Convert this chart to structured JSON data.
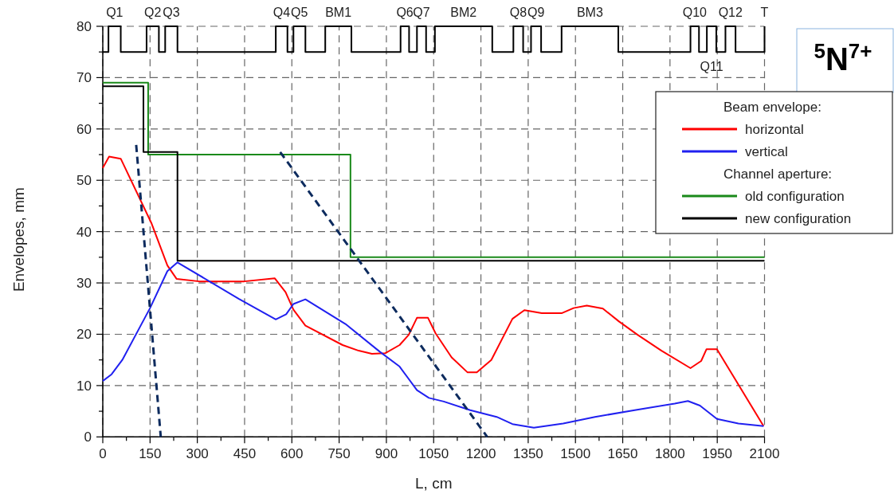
{
  "chart_data": {
    "type": "line",
    "xlabel": "L, cm",
    "ylabel": "Envelopes, mm",
    "legend_title": "Beam envelope:",
    "legend": "top right",
    "grid": true,
    "xlim": [
      0,
      2100
    ],
    "ylim": [
      0,
      80
    ],
    "xticks": [
      0,
      {
        "value": 75,
        "label": null
      },
      150,
      {
        "value": 225,
        "label": null
      },
      300,
      {
        "value": 375,
        "label": null
      },
      450,
      {
        "value": 525,
        "label": null
      },
      600,
      {
        "value": 675,
        "label": null
      },
      750,
      {
        "value": 825,
        "label": null
      },
      900,
      {
        "value": 975,
        "label": null
      },
      1050,
      {
        "value": 1125,
        "label": null
      },
      1200,
      {
        "value": 1275,
        "label": null
      },
      1350,
      {
        "value": 1425,
        "label": null
      },
      1500,
      {
        "value": 1575,
        "label": null
      },
      1650,
      {
        "value": 1725,
        "label": null
      },
      1800,
      {
        "value": 1875,
        "label": null
      },
      1950,
      {
        "value": 2025,
        "label": null
      },
      2100
    ],
    "yticks": [
      0,
      {
        "value": 5,
        "label": null
      },
      10,
      {
        "value": 15,
        "label": null
      },
      20,
      {
        "value": 25,
        "label": null
      },
      30,
      {
        "value": 35,
        "label": null
      },
      40,
      {
        "value": 45,
        "label": null
      },
      50,
      {
        "value": 55,
        "label": null
      },
      60,
      {
        "value": 65,
        "label": null
      },
      70,
      {
        "value": 75,
        "label": null
      },
      80
    ],
    "series": [
      {
        "name": "horizontal",
        "color": "#ff0000",
        "x": [
          0,
          20,
          57,
          154,
          205,
          234,
          306,
          449,
          546,
          580,
          605,
          643,
          761,
          812,
          854,
          896,
          942,
          971,
          997,
          1032,
          1056,
          1107,
          1157,
          1187,
          1233,
          1300,
          1338,
          1393,
          1456,
          1494,
          1536,
          1587,
          1638,
          1697,
          1773,
          1865,
          1899,
          1916,
          1949,
          2097
        ],
        "values": [
          52.4,
          54.6,
          54.2,
          41.7,
          33.4,
          30.8,
          30.3,
          30.3,
          30.9,
          28.2,
          24.8,
          21.7,
          17.9,
          16.8,
          16.2,
          16.3,
          17.9,
          19.9,
          23.2,
          23.2,
          20.2,
          15.5,
          12.6,
          12.6,
          15.0,
          23.0,
          24.7,
          24.1,
          24.1,
          25.1,
          25.6,
          25.0,
          22.5,
          19.9,
          16.8,
          13.4,
          14.8,
          17.1,
          17.1,
          2.1
        ]
      },
      {
        "name": "vertical",
        "color": "#2020f0",
        "x": [
          0,
          28,
          62,
          150,
          205,
          237,
          432,
          549,
          582,
          605,
          643,
          770,
          879,
          942,
          997,
          1035,
          1082,
          1166,
          1250,
          1300,
          1368,
          1461,
          1562,
          1688,
          1815,
          1857,
          1895,
          1949,
          2017,
          2097
        ],
        "values": [
          10.9,
          12.2,
          15.0,
          25.1,
          32.3,
          34.0,
          26.9,
          22.9,
          23.9,
          25.9,
          26.8,
          22.0,
          16.6,
          13.7,
          9.1,
          7.6,
          6.9,
          5.2,
          3.9,
          2.5,
          1.8,
          2.6,
          3.9,
          5.2,
          6.5,
          7.0,
          6.1,
          3.5,
          2.6,
          2.1
        ]
      },
      {
        "name": "old configuration",
        "type": "step",
        "color": "#1a8a1a",
        "x": [
          0,
          144,
          786,
          2100
        ],
        "values": [
          69,
          55,
          35,
          35
        ]
      },
      {
        "name": "new configuration",
        "type": "step",
        "color": "#000000",
        "x": [
          0,
          129,
          237,
          2100
        ],
        "values": [
          68.3,
          55.5,
          34.3,
          34.3
        ]
      },
      {
        "type": "step",
        "color": "#000000",
        "x": [
          0,
          18,
          57,
          139,
          178,
          198,
          237,
          549,
          586,
          605,
          643,
          706,
          789,
          945,
          972,
          997,
          1026,
          1054,
          1236,
          1303,
          1334,
          1359,
          1391,
          1456,
          1636,
          1865,
          1892,
          1917,
          1947,
          1976,
          2008,
          2100
        ],
        "values": [
          75,
          80,
          75,
          80,
          75,
          80,
          75,
          80,
          75,
          80,
          75,
          80,
          75,
          80,
          75,
          80,
          75,
          80,
          75,
          80,
          75,
          80,
          75,
          80,
          75,
          80,
          75,
          80,
          75,
          80,
          75,
          80
        ]
      },
      {
        "line_style": "dashed",
        "color": "#0d2b5e",
        "x": [
          106,
          184
        ],
        "values": [
          56.9,
          0
        ]
      },
      {
        "line_style": "dashed",
        "color": "#0d2b5e",
        "x": [
          563,
          1220
        ],
        "values": [
          55.5,
          0
        ]
      }
    ],
    "annotations": [
      "Channel aperture:",
      "$^{5}$N$^{7+}$",
      "Q1",
      "Q2",
      "Q3",
      "Q4",
      "Q5",
      "BM1",
      "Q6",
      "Q7",
      "BM2",
      "Q8",
      "Q9",
      "BM3",
      "Q10",
      "Q11",
      "Q12",
      "T"
    ]
  }
}
